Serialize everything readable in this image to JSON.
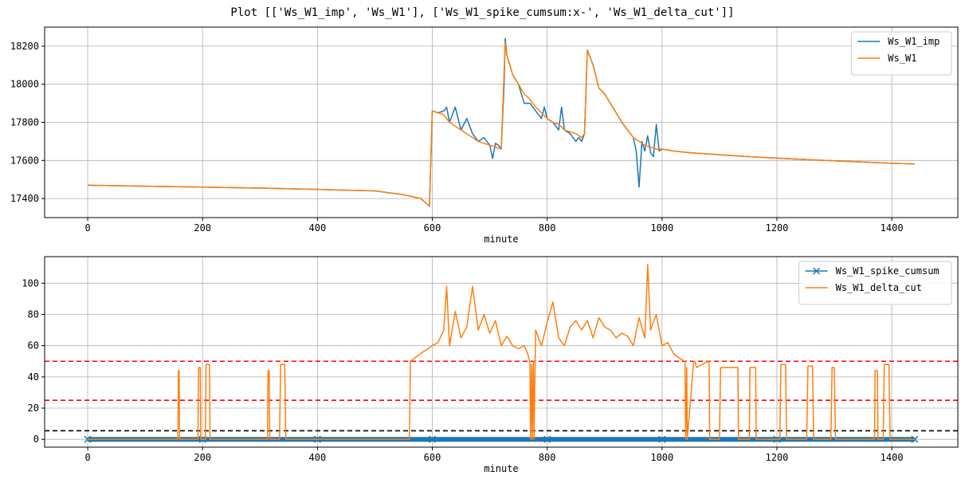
{
  "figure_title": "Plot [['Ws_W1_imp', 'Ws_W1'], ['Ws_W1_spike_cumsum:x-', 'Ws_W1_delta_cut']]",
  "colors": {
    "blue": "#1f77b4",
    "orange": "#ff7f0e",
    "red": "#ff0000",
    "black": "#000000",
    "grid": "#b0b0b0"
  },
  "chart_data": [
    {
      "type": "line",
      "xlabel": "minute",
      "ylabel": "",
      "xlim": [
        -75,
        1515
      ],
      "ylim": [
        17300,
        18300
      ],
      "xticks": [
        0,
        200,
        400,
        600,
        800,
        1000,
        1200,
        1400
      ],
      "yticks": [
        17400,
        17600,
        17800,
        18000,
        18200
      ],
      "grid": true,
      "legend_position": "top-right",
      "series": [
        {
          "name": "Ws_W1_imp",
          "color": "#1f77b4",
          "marker": "none",
          "x": [
            0,
            100,
            200,
            300,
            400,
            500,
            550,
            580,
            595,
            600,
            610,
            620,
            625,
            630,
            640,
            650,
            660,
            670,
            680,
            690,
            700,
            705,
            710,
            715,
            720,
            725,
            727,
            730,
            740,
            750,
            760,
            770,
            780,
            790,
            795,
            800,
            810,
            820,
            825,
            830,
            840,
            850,
            855,
            860,
            865,
            870,
            880,
            890,
            900,
            910,
            920,
            930,
            940,
            950,
            955,
            960,
            965,
            970,
            975,
            980,
            985,
            990,
            995,
            1000,
            1020,
            1050,
            1100,
            1150,
            1200,
            1250,
            1300,
            1350,
            1400,
            1440
          ],
          "y": [
            17470,
            17465,
            17460,
            17455,
            17448,
            17440,
            17420,
            17400,
            17360,
            17860,
            17850,
            17860,
            17880,
            17800,
            17880,
            17760,
            17820,
            17740,
            17700,
            17720,
            17680,
            17610,
            17690,
            17680,
            17660,
            18000,
            18240,
            18150,
            18050,
            18000,
            17900,
            17900,
            17860,
            17820,
            17880,
            17820,
            17800,
            17760,
            17880,
            17760,
            17740,
            17700,
            17720,
            17700,
            17740,
            18180,
            18100,
            17980,
            17950,
            17900,
            17850,
            17800,
            17760,
            17720,
            17650,
            17460,
            17700,
            17650,
            17730,
            17640,
            17620,
            17790,
            17650,
            17660,
            17650,
            17640,
            17630,
            17620,
            17612,
            17605,
            17598,
            17592,
            17585,
            17582
          ]
        },
        {
          "name": "Ws_W1",
          "color": "#ff7f0e",
          "marker": "none",
          "x": [
            0,
            100,
            200,
            300,
            400,
            500,
            550,
            580,
            595,
            600,
            610,
            620,
            630,
            640,
            650,
            660,
            670,
            680,
            690,
            700,
            710,
            720,
            727,
            730,
            740,
            750,
            760,
            770,
            780,
            790,
            800,
            810,
            820,
            830,
            840,
            850,
            860,
            865,
            870,
            880,
            890,
            900,
            910,
            920,
            930,
            940,
            950,
            960,
            970,
            980,
            990,
            1000,
            1020,
            1050,
            1100,
            1150,
            1200,
            1250,
            1300,
            1350,
            1400,
            1440
          ],
          "y": [
            17470,
            17465,
            17460,
            17455,
            17448,
            17440,
            17420,
            17400,
            17360,
            17860,
            17850,
            17840,
            17800,
            17780,
            17760,
            17740,
            17720,
            17700,
            17690,
            17680,
            17670,
            17660,
            18220,
            18150,
            18050,
            18000,
            17950,
            17920,
            17880,
            17850,
            17820,
            17800,
            17790,
            17760,
            17750,
            17740,
            17720,
            17740,
            18180,
            18100,
            17980,
            17950,
            17900,
            17850,
            17800,
            17760,
            17720,
            17700,
            17680,
            17670,
            17660,
            17660,
            17650,
            17640,
            17630,
            17620,
            17612,
            17605,
            17598,
            17592,
            17585,
            17582
          ]
        }
      ]
    },
    {
      "type": "line",
      "xlabel": "minute",
      "ylabel": "",
      "xlim": [
        -75,
        1515
      ],
      "ylim": [
        -5,
        117
      ],
      "xticks": [
        0,
        200,
        400,
        600,
        800,
        1000,
        1200,
        1400
      ],
      "yticks": [
        0,
        20,
        40,
        60,
        80,
        100
      ],
      "grid": true,
      "legend_position": "top-right",
      "hlines": [
        {
          "y": 50,
          "color": "#ff0000",
          "style": "dashed"
        },
        {
          "y": 25,
          "color": "#ff0000",
          "style": "dashed"
        },
        {
          "y": 5.5,
          "color": "#000000",
          "style": "dashed"
        }
      ],
      "series": [
        {
          "name": "Ws_W1_spike_cumsum",
          "color": "#1f77b4",
          "marker": "x",
          "x": [
            0,
            200,
            400,
            600,
            800,
            1000,
            1200,
            1440
          ],
          "y": [
            0,
            0,
            0,
            0,
            0,
            0,
            0,
            0
          ]
        },
        {
          "name": "Ws_W1_delta_cut",
          "color": "#ff7f0e",
          "marker": "none",
          "x": [
            0,
            157,
            158,
            159,
            160,
            192,
            193,
            196,
            197,
            205,
            206,
            212,
            213,
            313,
            314,
            316,
            317,
            334,
            336,
            343,
            345,
            560,
            562,
            580,
            600,
            610,
            620,
            625,
            630,
            640,
            650,
            660,
            670,
            680,
            690,
            700,
            710,
            720,
            730,
            740,
            750,
            760,
            765,
            770,
            771,
            773,
            774,
            776,
            777,
            780,
            790,
            800,
            810,
            820,
            830,
            840,
            850,
            860,
            870,
            880,
            890,
            900,
            910,
            920,
            930,
            940,
            950,
            960,
            970,
            975,
            980,
            990,
            1000,
            1010,
            1020,
            1030,
            1040,
            1041,
            1043,
            1044,
            1055,
            1057,
            1060,
            1080,
            1082,
            1083,
            1100,
            1102,
            1104,
            1130,
            1132,
            1133,
            1152,
            1153,
            1163,
            1164,
            1205,
            1207,
            1215,
            1217,
            1252,
            1254,
            1262,
            1264,
            1294,
            1296,
            1300,
            1302,
            1370,
            1371,
            1375,
            1376,
            1385,
            1387,
            1395,
            1397,
            1440
          ],
          "y": [
            0,
            0,
            44,
            44,
            0,
            0,
            46,
            46,
            0,
            0,
            48,
            48,
            0,
            0,
            44,
            44,
            0,
            0,
            48,
            48,
            0,
            0,
            50,
            55,
            60,
            62,
            70,
            98,
            60,
            82,
            65,
            72,
            98,
            70,
            80,
            68,
            76,
            60,
            66,
            60,
            58,
            60,
            56,
            50,
            0,
            48,
            0,
            50,
            0,
            70,
            60,
            75,
            88,
            65,
            60,
            72,
            76,
            70,
            76,
            65,
            78,
            72,
            70,
            65,
            68,
            66,
            60,
            78,
            65,
            112,
            70,
            80,
            60,
            62,
            55,
            52,
            50,
            0,
            46,
            0,
            50,
            50,
            46,
            50,
            48,
            0,
            0,
            46,
            46,
            46,
            46,
            0,
            0,
            46,
            46,
            0,
            0,
            48,
            48,
            0,
            0,
            47,
            47,
            0,
            0,
            46,
            46,
            0,
            0,
            44,
            44,
            0,
            0,
            48,
            48,
            0,
            0
          ]
        }
      ]
    }
  ]
}
